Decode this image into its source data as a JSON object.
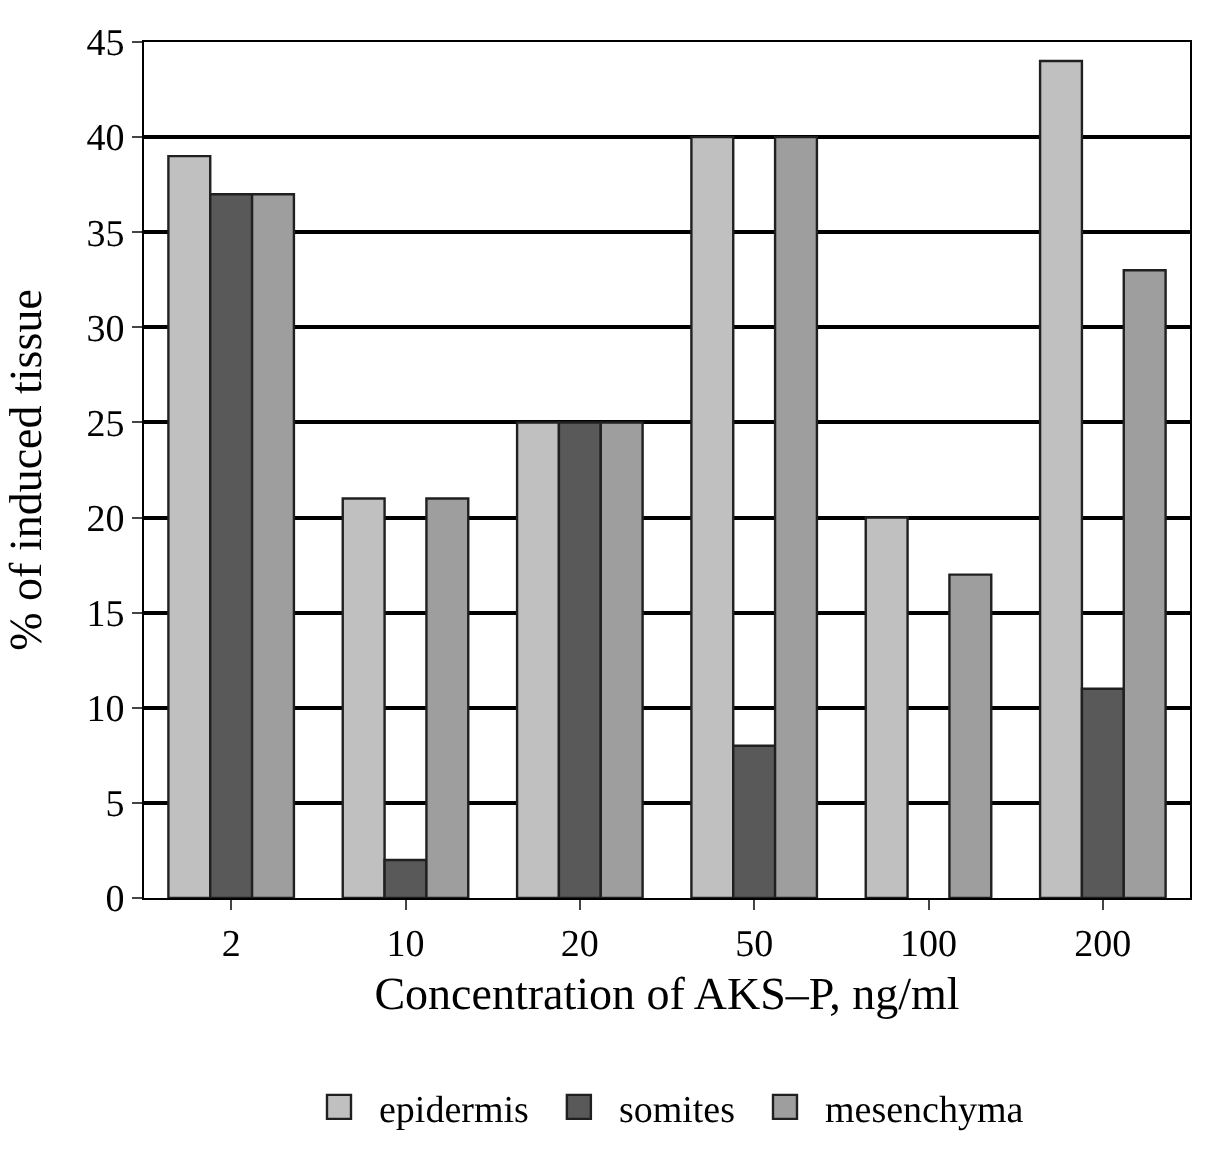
{
  "chart_data": {
    "type": "bar",
    "xlabel": "Concentration of AKS–P, ng/ml",
    "ylabel": "% of induced tissue",
    "categories": [
      "2",
      "10",
      "20",
      "50",
      "100",
      "200"
    ],
    "series": [
      {
        "name": "epidermis",
        "color": "#c0c0c0",
        "values": [
          39,
          21,
          25,
          40,
          20,
          44
        ]
      },
      {
        "name": "somites",
        "color": "#595959",
        "values": [
          37,
          2,
          25,
          8,
          0,
          11
        ]
      },
      {
        "name": "mesenchyma",
        "color": "#9e9e9e",
        "values": [
          37,
          21,
          25,
          40,
          17,
          33
        ]
      }
    ],
    "ylim": [
      0,
      45
    ],
    "yticks": [
      0,
      5,
      10,
      15,
      20,
      25,
      30,
      35,
      40,
      45
    ],
    "grid": "y",
    "legend": "bottom"
  }
}
